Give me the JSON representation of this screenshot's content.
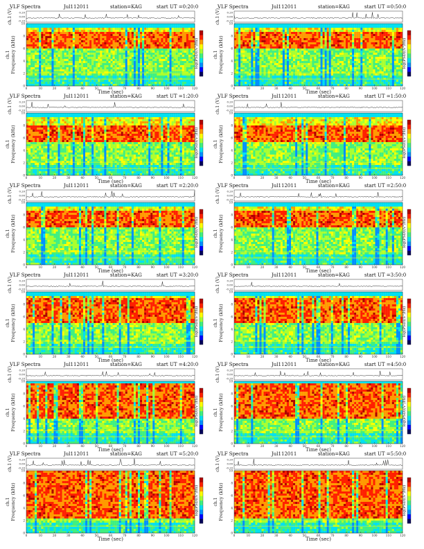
{
  "figure": {
    "colorbar_label": "log(PSD)(V²/Hz)",
    "channel_label": "ch.1 (V)",
    "channel_label_short": "ch.1",
    "frequency_label": "Frequency (kHz)",
    "time_label": "Time (sec)",
    "colormap": [
      "#00005a",
      "#0000ff",
      "#0090ff",
      "#00e0f0",
      "#40f080",
      "#a8ff30",
      "#ffff00",
      "#ff9a00",
      "#ff2000",
      "#b00000"
    ]
  },
  "panels": [
    {
      "tag": "VLF Spectra",
      "date": "Jul112011",
      "station": "station=KAG",
      "start_ut": "start UT =0:20:0"
    },
    {
      "tag": "VLF Spectra",
      "date": "Jul112011",
      "station": "station=KAG",
      "start_ut": "start UT =0:50:0"
    },
    {
      "tag": "VLF Spectra",
      "date": "Jul112011",
      "station": "station=KAG",
      "start_ut": "start UT =1:20:0"
    },
    {
      "tag": "VLF Spectra",
      "date": "Jul112011",
      "station": "station=KAG",
      "start_ut": "start UT =1:50:0"
    },
    {
      "tag": "VLF Spectra",
      "date": "Jul112011",
      "station": "station=KAG",
      "start_ut": "start UT =2:20:0"
    },
    {
      "tag": "VLF Spectra",
      "date": "Jul112011",
      "station": "station=KAG",
      "start_ut": "start UT =2:50:0"
    },
    {
      "tag": "VLF Spectra",
      "date": "Jul112011",
      "station": "station=KAG",
      "start_ut": "start UT =3:20:0"
    },
    {
      "tag": "VLF Spectra",
      "date": "Jul112011",
      "station": "station=KAG",
      "start_ut": "start UT =3:50:0"
    },
    {
      "tag": "VLF Spectra",
      "date": "Jul112011",
      "station": "station=KAG",
      "start_ut": "start UT =4:20:0"
    },
    {
      "tag": "VLF Spectra",
      "date": "Jul112011",
      "station": "station=KAG",
      "start_ut": "start UT =4:50:0"
    },
    {
      "tag": "VLF Spectra",
      "date": "Jul112011",
      "station": "station=KAG",
      "start_ut": "start UT =5:20:0"
    },
    {
      "tag": "VLF Spectra",
      "date": "Jul112011",
      "station": "station=KAG",
      "start_ut": "start UT =5:50:0"
    }
  ],
  "chart_data": {
    "type": "heatmap",
    "description_of_values": "Each panel: a waveform strip (ch.1 amplitude in V) above a spectrogram (Frequency 0–10 kHz vs Time 0–120 sec) colored by log PSD.",
    "waveform": {
      "ylabel": "ch.1 (V)",
      "y_ticks": [
        "0.20",
        "0.00",
        "-0.20"
      ],
      "ylim": [
        -0.2,
        0.2
      ]
    },
    "spectrogram": {
      "xlabel": "Time (sec)",
      "ylabel": "Frequency (kHz)",
      "xlim": [
        0,
        120
      ],
      "ylim": [
        0,
        10
      ],
      "x_ticks": [
        0,
        10,
        20,
        30,
        40,
        50,
        60,
        70,
        80,
        90,
        100,
        110,
        120
      ],
      "y_ticks": [
        0,
        2,
        4,
        6,
        8,
        10
      ],
      "colorbar_label": "log(PSD)(V²/Hz)",
      "bands_by_panel_row": [
        {
          "row": 1,
          "dominant_red_band_khz": [
            6,
            8.5
          ],
          "cutoff_khz": 9.3
        },
        {
          "row": 2,
          "dominant_red_band_khz": [
            5.5,
            8
          ],
          "cutoff_khz": 9.3
        },
        {
          "row": 3,
          "dominant_red_band_khz": [
            6,
            8.5
          ],
          "cutoff_khz": 9.3
        },
        {
          "row": 4,
          "dominant_red_band_khz": [
            5,
            9
          ],
          "cutoff_khz": 9.3
        },
        {
          "row": 5,
          "dominant_red_band_khz": [
            4,
            9.5
          ],
          "cutoff_khz": 9.5
        },
        {
          "row": 6,
          "dominant_red_band_khz": [
            2.5,
            10
          ],
          "cutoff_khz": 10
        }
      ]
    }
  }
}
